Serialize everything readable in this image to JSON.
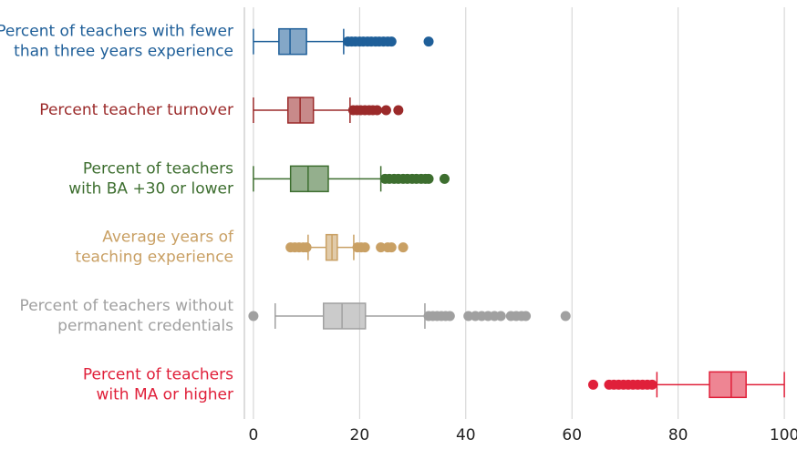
{
  "chart_data": {
    "type": "box",
    "orientation": "horizontal",
    "xlim": [
      -1.7,
      101.7
    ],
    "xticks": [
      0,
      20,
      40,
      60,
      80,
      100
    ],
    "grid": true,
    "series": [
      {
        "label_lines": [
          "Percent of teachers with fewer",
          "than three years experience"
        ],
        "color": "#1f5f99",
        "whisker_low": 0,
        "q1": 4.8,
        "median": 6.9,
        "q3": 10,
        "whisker_high": 17,
        "outliers": [
          17.8,
          18.5,
          19.2,
          20,
          20.7,
          21.5,
          22.2,
          23,
          23.7,
          24.5,
          25.3,
          26,
          33
        ]
      },
      {
        "label_lines": [
          "Percent teacher turnover"
        ],
        "color": "#9b2a2a",
        "whisker_low": 0,
        "q1": 6.5,
        "median": 8.8,
        "q3": 11.3,
        "whisker_high": 18.2,
        "outliers": [
          18.8,
          19.5,
          20.2,
          21,
          21.8,
          22.5,
          23.3,
          25,
          27.3
        ]
      },
      {
        "label_lines": [
          "Percent of teachers",
          "with BA +30 or lower"
        ],
        "color": "#3d6e2f",
        "whisker_low": 0,
        "q1": 7,
        "median": 10.3,
        "q3": 14.1,
        "whisker_high": 24,
        "outliers": [
          24.8,
          25.6,
          26.5,
          27.3,
          28.2,
          29,
          29.9,
          30.7,
          31.6,
          32.4,
          33,
          36
        ]
      },
      {
        "label_lines": [
          "Average years of",
          "teaching experience"
        ],
        "color": "#c9a064",
        "whisker_low": 10.3,
        "q1": 13.7,
        "median": 14.8,
        "q3": 15.8,
        "whisker_high": 18.9,
        "outliers": [
          7,
          7.8,
          8.6,
          9.4,
          10,
          19.6,
          20.3,
          21,
          24,
          25.3,
          26,
          28.2
        ]
      },
      {
        "label_lines": [
          "Percent of teachers without",
          "permanent credentials"
        ],
        "color": "#a0a0a0",
        "whisker_low": 4.1,
        "q1": 13.2,
        "median": 16.7,
        "q3": 21.1,
        "whisker_high": 32.3,
        "outliers": [
          0,
          33,
          33.8,
          34.6,
          35.4,
          36.2,
          37,
          40.5,
          41.8,
          43,
          44.2,
          45.4,
          46.6,
          48.5,
          49.5,
          50.5,
          51.3,
          58.8
        ]
      },
      {
        "label_lines": [
          "Percent of teachers",
          "with MA or higher"
        ],
        "color": "#e0203a",
        "whisker_low": 76,
        "q1": 85.9,
        "median": 90,
        "q3": 92.8,
        "whisker_high": 100,
        "outliers": [
          64,
          67,
          67.9,
          68.8,
          69.7,
          70.6,
          71.5,
          72.4,
          73.3,
          74.2,
          75.1
        ]
      }
    ]
  }
}
